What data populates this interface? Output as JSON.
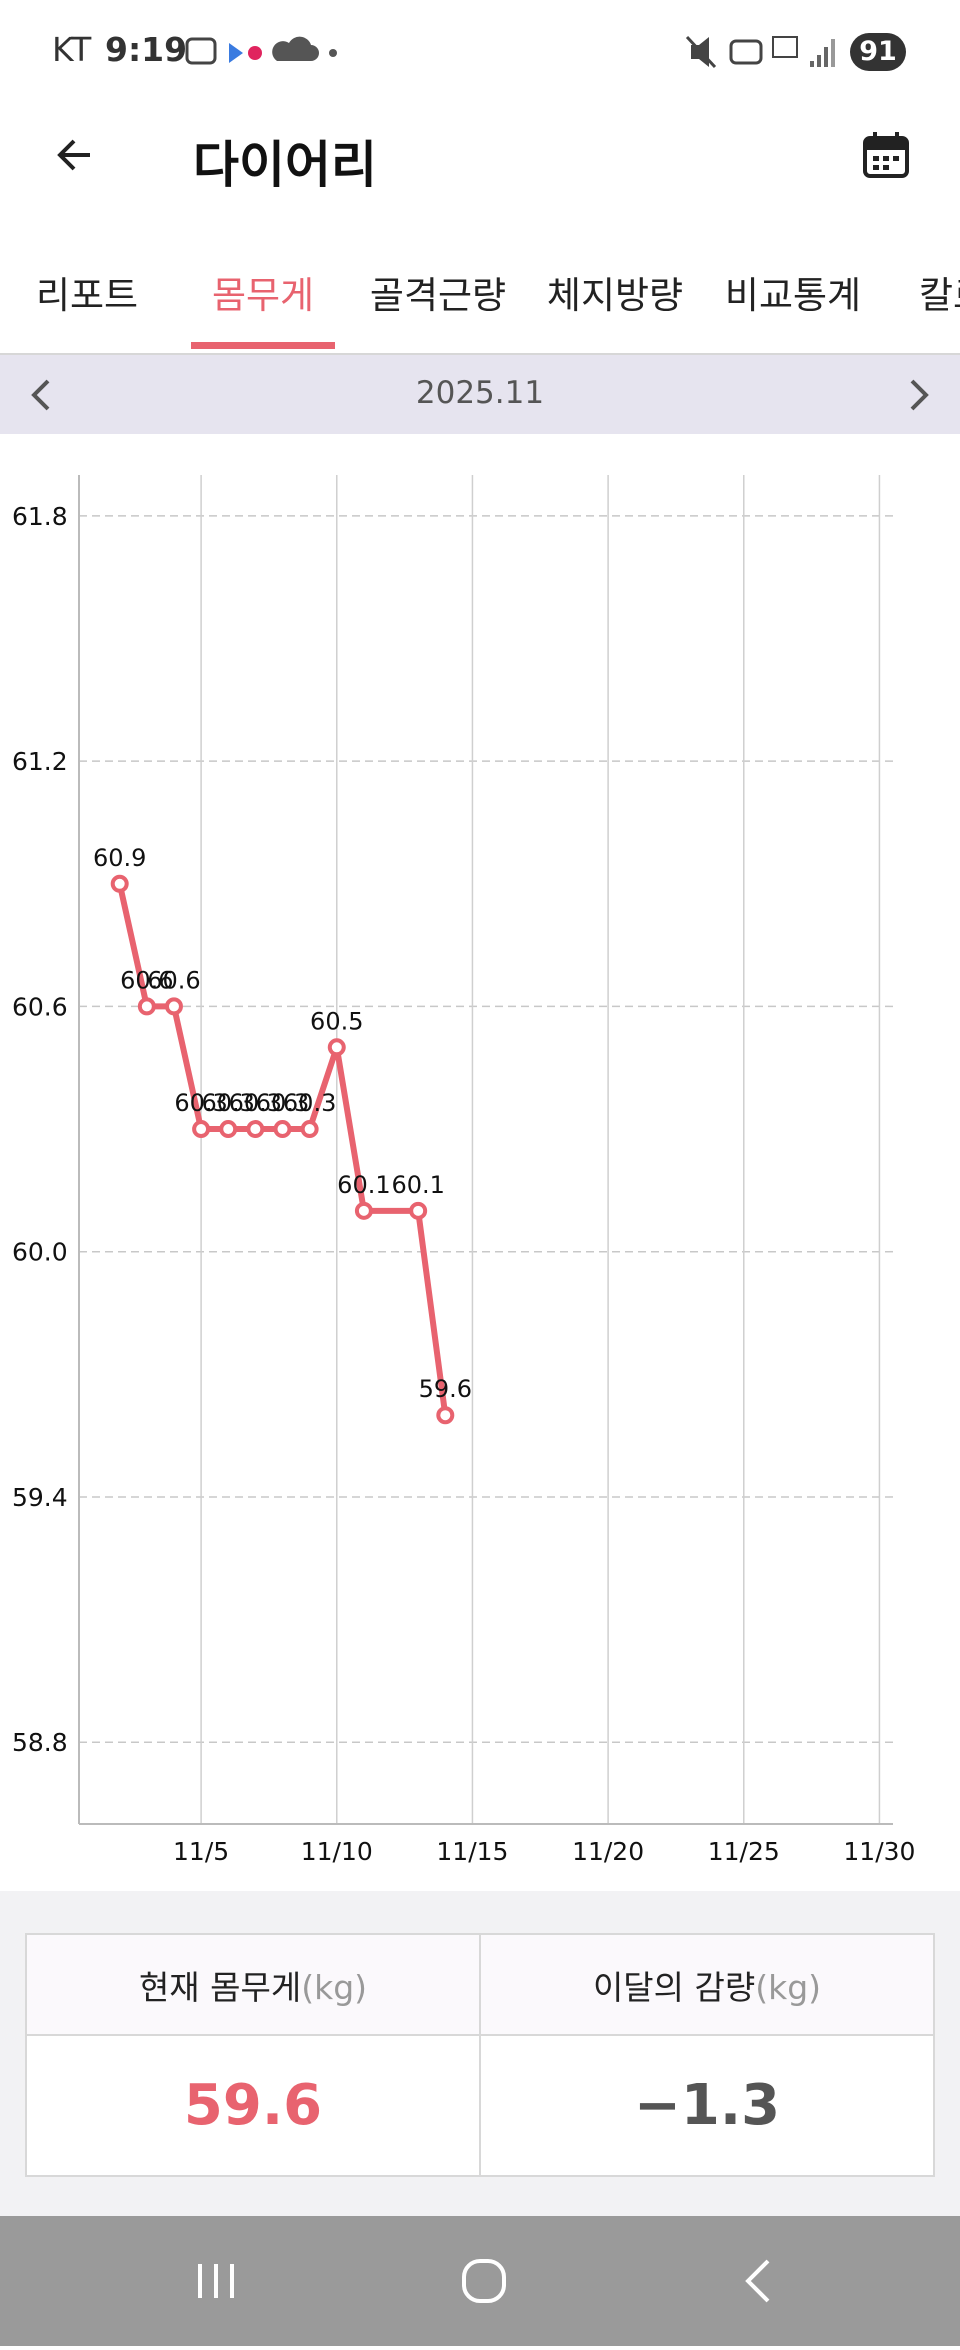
{
  "status_bar": {
    "carrier": "KT",
    "time": "9:19",
    "battery": "91"
  },
  "header": {
    "title": "다이어리"
  },
  "tabs": [
    "리포트",
    "몸무게",
    "골격근량",
    "체지방량",
    "비교통계",
    "칼로리"
  ],
  "month": "2025.11",
  "chart_data": {
    "type": "line",
    "x": [
      2,
      3,
      4,
      5,
      6,
      7,
      8,
      9,
      10,
      11,
      13,
      14
    ],
    "series": [
      {
        "name": "몸무게",
        "color": "#e8636f",
        "values": [
          60.9,
          60.6,
          60.6,
          60.3,
          60.3,
          60.3,
          60.3,
          60.3,
          60.5,
          60.1,
          60.1,
          59.6
        ]
      }
    ],
    "xlim": [
      0.5,
      30.5
    ],
    "xticks": [
      {
        "value": 5,
        "label": "11/5"
      },
      {
        "value": 10,
        "label": "11/10"
      },
      {
        "value": 15,
        "label": "11/15"
      },
      {
        "value": 20,
        "label": "11/20"
      },
      {
        "value": 25,
        "label": "11/25"
      },
      {
        "value": 30,
        "label": "11/30"
      }
    ],
    "ylim": [
      58.6,
      61.9
    ],
    "yticks": [
      58.8,
      59.4,
      {
        "value": 60,
        "label": "60.0"
      },
      60.6,
      61.2,
      61.8
    ],
    "grid": true
  },
  "summary": {
    "current": {
      "label": "현재 몸무게",
      "unit": "(kg)",
      "value": "59.6"
    },
    "loss": {
      "label": "이달의 감량",
      "unit": "(kg)",
      "value": "−1.3"
    }
  }
}
